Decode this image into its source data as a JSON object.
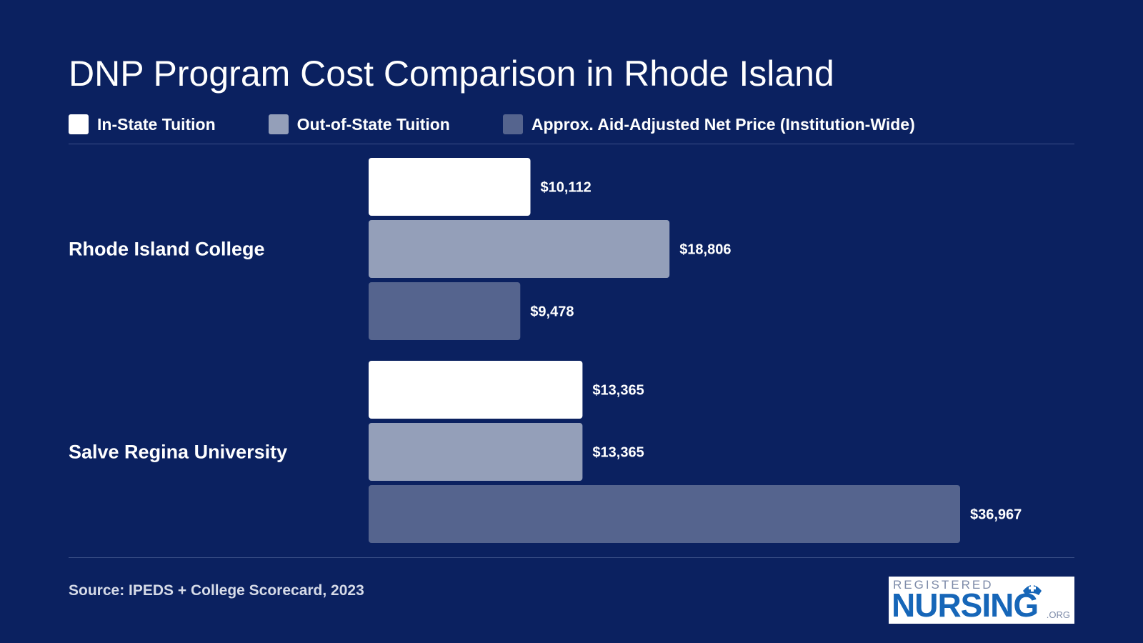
{
  "title": "DNP Program Cost Comparison in Rhode Island",
  "legend": [
    {
      "label": "In-State Tuition",
      "color": "#ffffff"
    },
    {
      "label": "Out-of-State Tuition",
      "color": "#949fb9"
    },
    {
      "label": "Approx. Aid-Adjusted Net Price (Institution-Wide)",
      "color": "#55648e"
    }
  ],
  "chart_data": {
    "type": "bar",
    "orientation": "horizontal",
    "categories": [
      "Rhode Island College",
      "Salve Regina University"
    ],
    "series": [
      {
        "name": "In-State Tuition",
        "color": "#ffffff",
        "values": [
          10112,
          13365
        ],
        "labels": [
          "$10,112",
          "$13,365"
        ]
      },
      {
        "name": "Out-of-State Tuition",
        "color": "#949fb9",
        "values": [
          18806,
          13365
        ],
        "labels": [
          "$18,806",
          "$13,365"
        ]
      },
      {
        "name": "Approx. Aid-Adjusted Net Price (Institution-Wide)",
        "color": "#55648e",
        "values": [
          9478,
          36967
        ],
        "labels": [
          "$9,478",
          "$36,967"
        ]
      }
    ],
    "legend_position": "top-left",
    "grid": false
  },
  "source": "Source: IPEDS + College Scorecard, 2023",
  "logo": {
    "top_text": "REGISTERED",
    "main_text": "NURSING",
    "suffix": ".ORG"
  }
}
